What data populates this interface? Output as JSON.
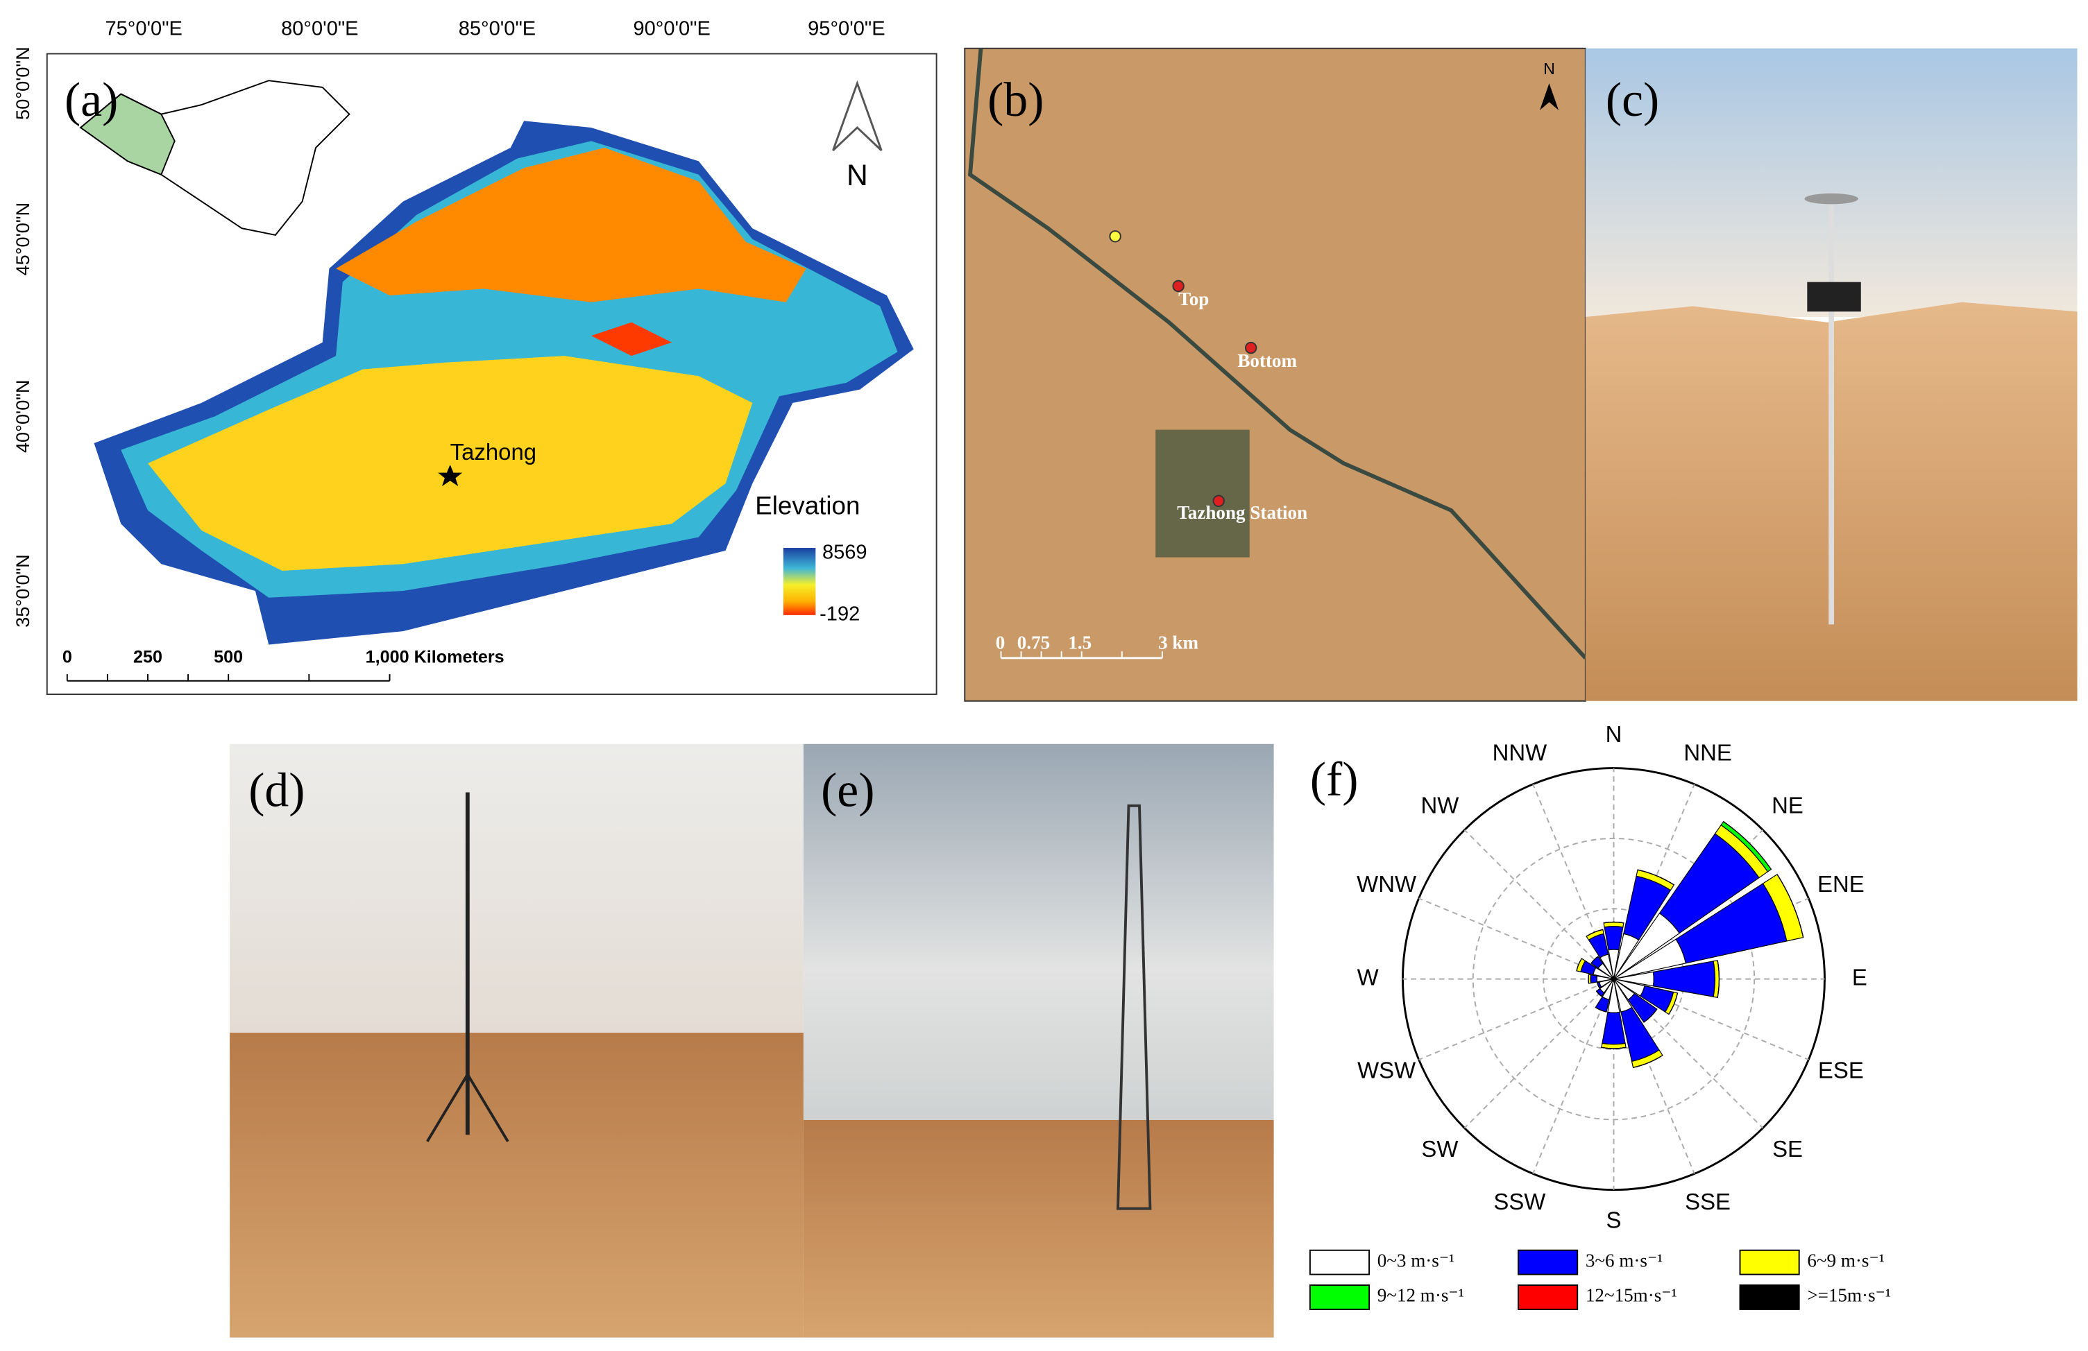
{
  "panel_labels": [
    "(a)",
    "(b)",
    "(c)",
    "(d)",
    "(e)",
    "(f)"
  ],
  "map_a": {
    "lon_labels": [
      "75°0'0\"E",
      "80°0'0\"E",
      "85°0'0\"E",
      "90°0'0\"E",
      "95°0'0\"E"
    ],
    "lat_labels": [
      "50°0'0\"N",
      "45°0'0\"N",
      "40°0'0\"N",
      "35°0'0\"N"
    ],
    "site": "Tazhong",
    "north": "N",
    "legend_title": "Elevation",
    "legend_max": "8569",
    "legend_min": "-192",
    "scale_labels": [
      "0",
      "250",
      "500",
      "1,000 Kilometers"
    ]
  },
  "map_b": {
    "north": "N",
    "sites": [
      "Top",
      "Bottom",
      "Tazhong Station"
    ],
    "scale_labels": [
      "0",
      "0.75",
      "1.5",
      "3 km"
    ]
  },
  "chart_data": {
    "type": "wind_rose",
    "directions": [
      "N",
      "NNE",
      "NE",
      "ENE",
      "E",
      "ESE",
      "SE",
      "SSE",
      "S",
      "SSW",
      "SW",
      "WSW",
      "W",
      "WNW",
      "NW",
      "NNW"
    ],
    "rlim": [
      0,
      100
    ],
    "series": [
      {
        "name": "0~3 m·s⁻¹",
        "color": "#ffffff",
        "values": [
          14,
          22,
          38,
          35,
          19,
          15,
          12,
          16,
          16,
          10,
          8,
          7,
          8,
          10,
          9,
          12
        ]
      },
      {
        "name": "3~6 m·s⁻¹",
        "color": "#0000ff",
        "values": [
          11,
          28,
          46,
          49,
          29,
          14,
          13,
          24,
          15,
          6,
          2,
          1,
          3,
          6,
          4,
          10
        ]
      },
      {
        "name": "6~9 m·s⁻¹",
        "color": "#ffff00",
        "values": [
          2,
          3,
          5,
          8,
          2,
          2,
          0,
          3,
          2,
          0,
          0,
          0,
          1,
          2,
          0,
          2
        ]
      },
      {
        "name": "9~12 m·s⁻¹",
        "color": "#00ff00",
        "values": [
          0,
          0,
          2,
          0,
          0,
          0,
          0,
          0,
          0,
          0,
          0,
          0,
          0,
          0,
          0,
          0
        ]
      },
      {
        "name": "12~15m·s⁻¹",
        "color": "#ff0000",
        "values": [
          0,
          0,
          0,
          0,
          0,
          0,
          0,
          0,
          0,
          0,
          0,
          0,
          0,
          0,
          0,
          0
        ]
      },
      {
        "name": ">=15m·s⁻¹",
        "color": "#000000",
        "values": [
          0,
          0,
          0,
          0,
          0,
          0,
          0,
          0,
          0,
          0,
          0,
          0,
          0,
          0,
          0,
          0
        ]
      }
    ]
  }
}
